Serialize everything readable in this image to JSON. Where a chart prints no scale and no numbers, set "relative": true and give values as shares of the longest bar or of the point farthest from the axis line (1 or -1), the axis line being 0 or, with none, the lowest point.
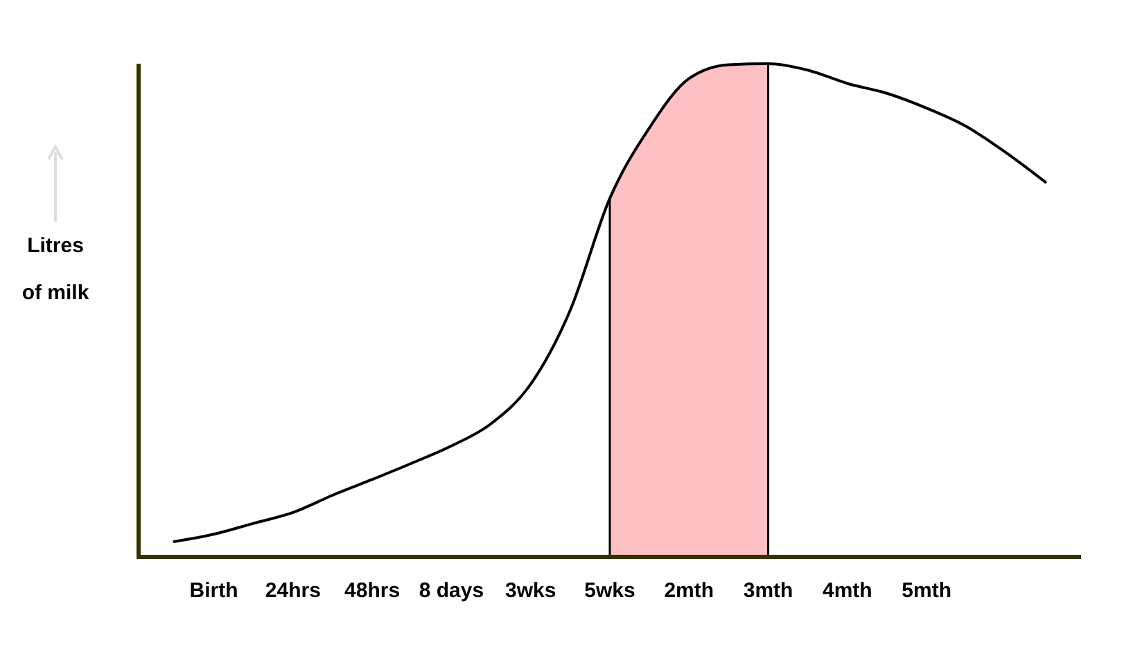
{
  "chart_data": {
    "type": "line",
    "relative": true,
    "ylabel": "Litres of milk",
    "categories": [
      null,
      "Birth",
      null,
      "24hrs",
      null,
      "48hrs",
      null,
      "8 days",
      null,
      "3wks",
      null,
      "5wks",
      null,
      "2mth",
      null,
      "3mth",
      null,
      "4mth",
      null,
      "5mth",
      null,
      null,
      null
    ],
    "bands": [
      {
        "axis": "x",
        "from": "5wks",
        "to": "3mth",
        "color": "#ffc0c4"
      }
    ],
    "series": [
      {
        "color": "#000000",
        "values": [
          0.031,
          0.046,
          0.068,
          0.09,
          0.125,
          0.157,
          0.19,
          0.225,
          0.27,
          0.35,
          0.5,
          0.727,
          0.87,
          0.97,
          0.998,
          1,
          0.987,
          0.96,
          0.94,
          0.91,
          0.873,
          0.82,
          0.76
        ]
      }
    ]
  }
}
